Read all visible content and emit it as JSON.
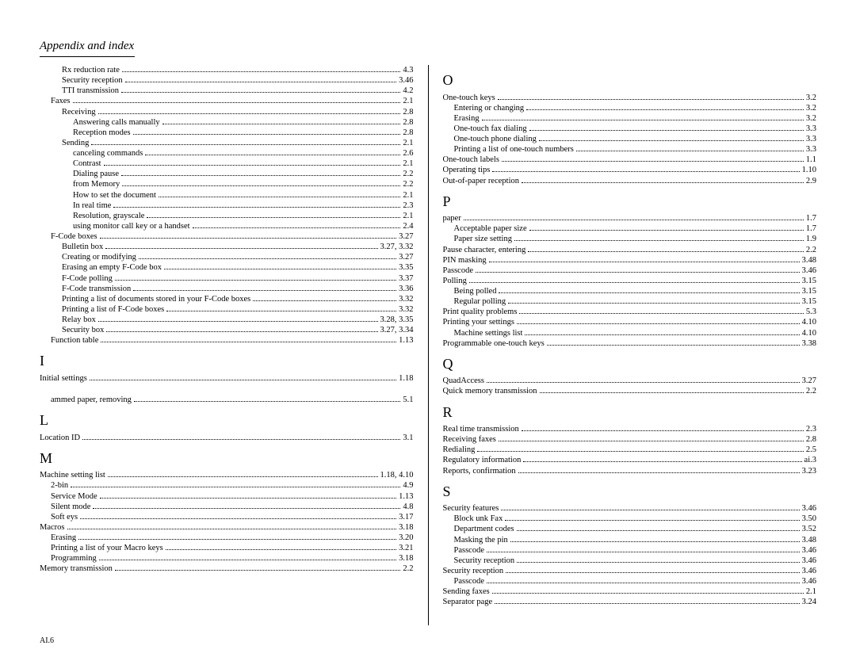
{
  "header": "Appendix and index",
  "footer": "AI.6",
  "colors": {
    "background": "#ffffff",
    "text": "#000000",
    "rule": "#000000"
  },
  "typography": {
    "body_font": "Times New Roman",
    "body_size_pt": 10.5,
    "header_size_pt": 15,
    "letter_size_pt": 18
  },
  "left_column": [
    {
      "type": "entry",
      "indent": 2,
      "label": "Rx reduction rate",
      "page": "4.3"
    },
    {
      "type": "entry",
      "indent": 2,
      "label": "Security reception",
      "page": "3.46"
    },
    {
      "type": "entry",
      "indent": 2,
      "label": "TTI transmission",
      "page": "4.2"
    },
    {
      "type": "entry",
      "indent": 1,
      "label": "Faxes",
      "page": "2.1"
    },
    {
      "type": "entry",
      "indent": 2,
      "label": "Receiving",
      "page": "2.8"
    },
    {
      "type": "entry",
      "indent": 3,
      "label": "Answering calls manually",
      "page": "2.8"
    },
    {
      "type": "entry",
      "indent": 3,
      "label": "Reception modes",
      "page": "2.8"
    },
    {
      "type": "entry",
      "indent": 2,
      "label": "Sending",
      "page": "2.1"
    },
    {
      "type": "entry",
      "indent": 3,
      "label": "canceling commands",
      "page": "2.6"
    },
    {
      "type": "entry",
      "indent": 3,
      "label": "Contrast",
      "page": "2.1"
    },
    {
      "type": "entry",
      "indent": 3,
      "label": "Dialing pause",
      "page": "2.2"
    },
    {
      "type": "entry",
      "indent": 3,
      "label": "from Memory",
      "page": "2.2"
    },
    {
      "type": "entry",
      "indent": 3,
      "label": "How to set the document",
      "page": "2.1"
    },
    {
      "type": "entry",
      "indent": 3,
      "label": "In real time",
      "page": "2.3"
    },
    {
      "type": "entry",
      "indent": 3,
      "label": "Resolution, grayscale",
      "page": "2.1"
    },
    {
      "type": "entry",
      "indent": 3,
      "label": "using monitor call key or a handset",
      "page": "2.4"
    },
    {
      "type": "entry",
      "indent": 1,
      "label": "F-Code boxes",
      "page": "3.27"
    },
    {
      "type": "entry",
      "indent": 2,
      "label": "Bulletin box",
      "page": "3.27, 3.32"
    },
    {
      "type": "entry",
      "indent": 2,
      "label": "Creating or modifying",
      "page": "3.27"
    },
    {
      "type": "entry",
      "indent": 2,
      "label": "Erasing an empty F-Code box",
      "page": "3.35"
    },
    {
      "type": "entry",
      "indent": 2,
      "label": "F-Code polling",
      "page": "3.37"
    },
    {
      "type": "entry",
      "indent": 2,
      "label": "F-Code transmission",
      "page": "3.36"
    },
    {
      "type": "entry",
      "indent": 2,
      "label": "Printing a list of documents stored in your F-Code boxes",
      "page": "3.32"
    },
    {
      "type": "entry",
      "indent": 2,
      "label": "Printing a list of F-Code boxes",
      "page": "3.32"
    },
    {
      "type": "entry",
      "indent": 2,
      "label": "Relay box",
      "page": "3.28, 3.35"
    },
    {
      "type": "entry",
      "indent": 2,
      "label": "Security box",
      "page": "3.27, 3.34"
    },
    {
      "type": "entry",
      "indent": 1,
      "label": "Function table",
      "page": "1.13"
    },
    {
      "type": "letter",
      "text": "I"
    },
    {
      "type": "entry",
      "indent": 0,
      "label": "Initial settings",
      "page": "1.18"
    },
    {
      "type": "spacer"
    },
    {
      "type": "entry",
      "indent": 1,
      "label": "ammed paper, removing",
      "page": "5.1"
    },
    {
      "type": "letter",
      "text": "L"
    },
    {
      "type": "entry",
      "indent": 0,
      "label": "Location ID",
      "page": "3.1"
    },
    {
      "type": "letter",
      "text": "M"
    },
    {
      "type": "entry",
      "indent": 0,
      "label": "Machine setting list",
      "page": "1.18, 4.10"
    },
    {
      "type": "entry",
      "indent": 1,
      "label": "2-bin",
      "page": "4.9"
    },
    {
      "type": "entry",
      "indent": 1,
      "label": "Service Mode",
      "page": "1.13"
    },
    {
      "type": "entry",
      "indent": 1,
      "label": "Silent mode",
      "page": "4.8"
    },
    {
      "type": "entry",
      "indent": 1,
      "label": "Soft   eys",
      "page": "3.17"
    },
    {
      "type": "entry",
      "indent": 0,
      "label": "Macros",
      "page": "3.18"
    },
    {
      "type": "entry",
      "indent": 1,
      "label": "Erasing",
      "page": "3.20"
    },
    {
      "type": "entry",
      "indent": 1,
      "label": "Printing a list of your Macro keys",
      "page": "3.21"
    },
    {
      "type": "entry",
      "indent": 1,
      "label": "Programming",
      "page": "3.18"
    },
    {
      "type": "entry",
      "indent": 0,
      "label": "Memory transmission",
      "page": "2.2"
    }
  ],
  "right_column": [
    {
      "type": "letter",
      "text": "O"
    },
    {
      "type": "entry",
      "indent": 0,
      "label": "One-touch keys",
      "page": "3.2"
    },
    {
      "type": "entry",
      "indent": 1,
      "label": "Entering or changing",
      "page": "3.2"
    },
    {
      "type": "entry",
      "indent": 1,
      "label": "Erasing",
      "page": "3.2"
    },
    {
      "type": "entry",
      "indent": 1,
      "label": "One-touch fax dialing",
      "page": "3.3"
    },
    {
      "type": "entry",
      "indent": 1,
      "label": "One-touch phone dialing",
      "page": "3.3"
    },
    {
      "type": "entry",
      "indent": 1,
      "label": "Printing a list of one-touch numbers",
      "page": "3.3"
    },
    {
      "type": "entry",
      "indent": 0,
      "label": "One-touch labels",
      "page": "1.1"
    },
    {
      "type": "entry",
      "indent": 0,
      "label": "Operating tips",
      "page": "1.10"
    },
    {
      "type": "entry",
      "indent": 0,
      "label": "Out-of-paper reception",
      "page": "2.9"
    },
    {
      "type": "letter",
      "text": "P"
    },
    {
      "type": "entry",
      "indent": 0,
      "label": "paper",
      "page": "1.7"
    },
    {
      "type": "entry",
      "indent": 1,
      "label": "Acceptable paper size",
      "page": "1.7"
    },
    {
      "type": "entry",
      "indent": 1,
      "label": "Paper size setting",
      "page": "1.9"
    },
    {
      "type": "entry",
      "indent": 0,
      "label": "Pause character, entering",
      "page": "2.2"
    },
    {
      "type": "entry",
      "indent": 0,
      "label": "PIN masking",
      "page": "3.48"
    },
    {
      "type": "entry",
      "indent": 0,
      "label": "Passcode",
      "page": "3.46"
    },
    {
      "type": "entry",
      "indent": 0,
      "label": "Polling",
      "page": "3.15"
    },
    {
      "type": "entry",
      "indent": 1,
      "label": "Being polled",
      "page": "3.15"
    },
    {
      "type": "entry",
      "indent": 1,
      "label": "Regular polling",
      "page": "3.15"
    },
    {
      "type": "entry",
      "indent": 0,
      "label": "Print quality problems",
      "page": "5.3"
    },
    {
      "type": "entry",
      "indent": 0,
      "label": "Printing your settings",
      "page": "4.10"
    },
    {
      "type": "entry",
      "indent": 1,
      "label": "Machine settings list",
      "page": "4.10"
    },
    {
      "type": "entry",
      "indent": 0,
      "label": "Programmable one-touch keys",
      "page": "3.38"
    },
    {
      "type": "letter",
      "text": "Q"
    },
    {
      "type": "entry",
      "indent": 0,
      "label": "QuadAccess",
      "page": "3.27"
    },
    {
      "type": "entry",
      "indent": 0,
      "label": "Quick memory transmission",
      "page": "2.2"
    },
    {
      "type": "letter",
      "text": "R"
    },
    {
      "type": "entry",
      "indent": 0,
      "label": "Real time transmission",
      "page": "2.3"
    },
    {
      "type": "entry",
      "indent": 0,
      "label": "Receiving faxes",
      "page": "2.8"
    },
    {
      "type": "entry",
      "indent": 0,
      "label": "Redialing",
      "page": "2.5"
    },
    {
      "type": "entry",
      "indent": 0,
      "label": "Regulatory information",
      "page": "ai.3"
    },
    {
      "type": "entry",
      "indent": 0,
      "label": "Reports, confirmation",
      "page": "3.23"
    },
    {
      "type": "letter",
      "text": "S"
    },
    {
      "type": "entry",
      "indent": 0,
      "label": "Security features",
      "page": "3.46"
    },
    {
      "type": "entry",
      "indent": 1,
      "label": "Block   unk Fax",
      "page": "3.50"
    },
    {
      "type": "entry",
      "indent": 1,
      "label": "Department codes",
      "page": "3.52"
    },
    {
      "type": "entry",
      "indent": 1,
      "label": "Masking the pin",
      "page": "3.48"
    },
    {
      "type": "entry",
      "indent": 1,
      "label": "Passcode",
      "page": "3.46"
    },
    {
      "type": "entry",
      "indent": 1,
      "label": "Security reception",
      "page": "3.46"
    },
    {
      "type": "entry",
      "indent": 0,
      "label": "Security reception",
      "page": "3.46"
    },
    {
      "type": "entry",
      "indent": 1,
      "label": "Passcode",
      "page": "3.46"
    },
    {
      "type": "entry",
      "indent": 0,
      "label": "Sending faxes",
      "page": "2.1"
    },
    {
      "type": "entry",
      "indent": 0,
      "label": "Separator page",
      "page": "3.24"
    }
  ]
}
